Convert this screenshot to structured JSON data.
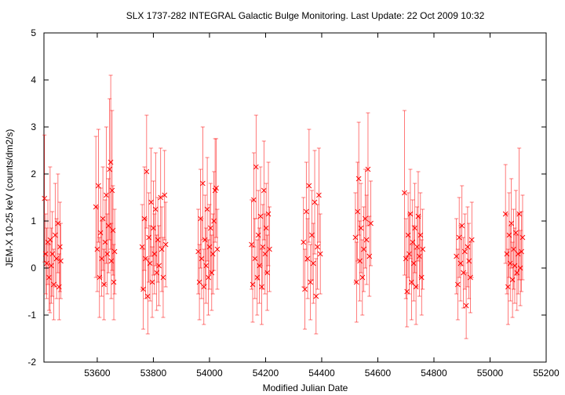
{
  "chart_data": {
    "type": "scatter",
    "title": "SLX 1737-282   INTEGRAL Galactic Bulge Monitoring.  Last Update: 22 Oct 2009 10:32",
    "xlabel": "Modified Julian Date",
    "ylabel": "JEM-X 10-25 keV (counts/dm2/s)",
    "xlim": [
      53410,
      55200
    ],
    "ylim": [
      -2,
      5
    ],
    "x_ticks": [
      53600,
      53800,
      54000,
      54200,
      54400,
      54600,
      54800,
      55000,
      55200
    ],
    "x_tick_labels": [
      "53600",
      "53800",
      "54000",
      "54200",
      "54400",
      "54600",
      "54800",
      "55000",
      "55200"
    ],
    "y_ticks": [
      -2,
      -1,
      0,
      1,
      2,
      3,
      4,
      5
    ],
    "y_tick_labels": [
      "-2",
      "-1",
      "0",
      "1",
      "2",
      "3",
      "4",
      "5"
    ],
    "grid": false,
    "marker": "x",
    "error_bars": true,
    "color": "#ff0000",
    "series": [
      {
        "points": [
          [
            53412,
            1.48,
            1.35
          ],
          [
            53416,
            0.3,
            0.85
          ],
          [
            53420,
            0.1,
            0.75
          ],
          [
            53424,
            0.55,
            0.9
          ],
          [
            53428,
            -0.2,
            0.7
          ],
          [
            53432,
            0.6,
            1.55
          ],
          [
            53436,
            0.05,
            0.8
          ],
          [
            53440,
            0.3,
            0.9
          ],
          [
            53445,
            -0.35,
            0.75
          ],
          [
            53450,
            0.7,
            1.1
          ],
          [
            53455,
            0.2,
            0.85
          ],
          [
            53460,
            0.95,
            1.05
          ],
          [
            53464,
            -0.4,
            0.7
          ],
          [
            53467,
            0.45,
            0.95
          ],
          [
            53470,
            0.15,
            0.8
          ],
          [
            53595,
            1.3,
            1.5
          ],
          [
            53600,
            0.4,
            0.9
          ],
          [
            53604,
            1.75,
            1.2
          ],
          [
            53608,
            -0.2,
            0.85
          ],
          [
            53612,
            0.75,
            0.95
          ],
          [
            53616,
            0.2,
            0.8
          ],
          [
            53620,
            1.05,
            1.1
          ],
          [
            53624,
            -0.35,
            0.75
          ],
          [
            53628,
            0.55,
            0.9
          ],
          [
            53632,
            1.55,
            1.45
          ],
          [
            53636,
            0.3,
            0.85
          ],
          [
            53640,
            0.9,
            1.0
          ],
          [
            53644,
            2.1,
            1.5
          ],
          [
            53648,
            2.25,
            1.85
          ],
          [
            53650,
            0.15,
            0.8
          ],
          [
            53653,
            1.65,
            1.7
          ],
          [
            53656,
            0.8,
            0.95
          ],
          [
            53659,
            -0.3,
            0.8
          ],
          [
            53662,
            0.35,
            0.9
          ],
          [
            53760,
            0.45,
            0.9
          ],
          [
            53764,
            -0.45,
            0.85
          ],
          [
            53768,
            1.05,
            1.1
          ],
          [
            53772,
            0.2,
            0.85
          ],
          [
            53776,
            2.05,
            1.2
          ],
          [
            53780,
            -0.6,
            0.8
          ],
          [
            53784,
            0.65,
            0.95
          ],
          [
            53788,
            0.1,
            0.8
          ],
          [
            53792,
            1.4,
            1.15
          ],
          [
            53796,
            -0.3,
            0.75
          ],
          [
            53800,
            0.85,
            1.0
          ],
          [
            53804,
            0.3,
            0.85
          ],
          [
            53808,
            1.25,
            1.2
          ],
          [
            53812,
            -0.1,
            0.8
          ],
          [
            53816,
            0.6,
            0.9
          ],
          [
            53820,
            0.05,
            0.85
          ],
          [
            53826,
            1.5,
            1.05
          ],
          [
            53830,
            0.4,
            0.9
          ],
          [
            53835,
            -0.2,
            0.85
          ],
          [
            53840,
            1.55,
            0.95
          ],
          [
            53844,
            0.5,
            0.9
          ],
          [
            53960,
            0.35,
            0.9
          ],
          [
            53964,
            -0.3,
            0.8
          ],
          [
            53968,
            1.05,
            1.05
          ],
          [
            53972,
            0.2,
            0.85
          ],
          [
            53976,
            1.8,
            1.2
          ],
          [
            53980,
            -0.4,
            0.8
          ],
          [
            53984,
            0.6,
            0.95
          ],
          [
            53988,
            0.05,
            0.8
          ],
          [
            53992,
            1.25,
            1.1
          ],
          [
            53996,
            -0.2,
            0.8
          ],
          [
            54000,
            0.45,
            0.9
          ],
          [
            54004,
            0.85,
            0.95
          ],
          [
            54008,
            -0.1,
            0.8
          ],
          [
            54012,
            0.3,
            0.85
          ],
          [
            54016,
            1.0,
            1.05
          ],
          [
            54020,
            1.65,
            1.1
          ],
          [
            54024,
            1.7,
            1.05
          ],
          [
            54028,
            0.4,
            0.85
          ],
          [
            54150,
            0.5,
            0.95
          ],
          [
            54154,
            -0.35,
            0.8
          ],
          [
            54158,
            1.45,
            1.0
          ],
          [
            54162,
            0.2,
            0.85
          ],
          [
            54166,
            2.15,
            1.1
          ],
          [
            54170,
            -0.2,
            0.8
          ],
          [
            54174,
            0.7,
            0.95
          ],
          [
            54178,
            0.05,
            0.8
          ],
          [
            54182,
            1.1,
            1.05
          ],
          [
            54186,
            -0.4,
            0.8
          ],
          [
            54190,
            0.45,
            0.9
          ],
          [
            54194,
            1.65,
            1.05
          ],
          [
            54198,
            0.3,
            0.85
          ],
          [
            54202,
            0.85,
            0.95
          ],
          [
            54206,
            -0.1,
            0.8
          ],
          [
            54210,
            1.15,
            1.1
          ],
          [
            54214,
            0.4,
            0.9
          ],
          [
            54335,
            0.55,
            0.95
          ],
          [
            54340,
            -0.45,
            0.85
          ],
          [
            54345,
            1.2,
            1.05
          ],
          [
            54350,
            0.2,
            0.85
          ],
          [
            54355,
            1.75,
            1.2
          ],
          [
            54360,
            -0.3,
            0.8
          ],
          [
            54365,
            0.7,
            0.95
          ],
          [
            54370,
            0.1,
            0.85
          ],
          [
            54375,
            1.4,
            1.1
          ],
          [
            54380,
            -0.6,
            0.8
          ],
          [
            54385,
            0.45,
            0.9
          ],
          [
            54390,
            1.55,
            1.0
          ],
          [
            54395,
            0.3,
            0.85
          ],
          [
            54520,
            0.65,
            0.95
          ],
          [
            54524,
            -0.3,
            0.85
          ],
          [
            54528,
            1.2,
            1.05
          ],
          [
            54532,
            1.9,
            1.2
          ],
          [
            54536,
            0.15,
            0.85
          ],
          [
            54540,
            0.85,
            0.95
          ],
          [
            54545,
            -0.2,
            0.8
          ],
          [
            54550,
            0.4,
            0.9
          ],
          [
            54555,
            1.05,
            1.05
          ],
          [
            54560,
            0.6,
            0.95
          ],
          [
            54565,
            2.1,
            1.2
          ],
          [
            54570,
            0.25,
            0.85
          ],
          [
            54575,
            0.95,
            0.9
          ],
          [
            54695,
            1.6,
            1.75
          ],
          [
            54700,
            0.2,
            0.85
          ],
          [
            54704,
            -0.5,
            0.75
          ],
          [
            54708,
            0.7,
            0.9
          ],
          [
            54712,
            0.3,
            0.85
          ],
          [
            54716,
            1.15,
            0.95
          ],
          [
            54720,
            -0.3,
            0.8
          ],
          [
            54724,
            0.55,
            0.9
          ],
          [
            54728,
            0.1,
            0.8
          ],
          [
            54732,
            0.85,
            0.95
          ],
          [
            54736,
            -0.4,
            0.8
          ],
          [
            54740,
            0.45,
            0.85
          ],
          [
            54744,
            1.1,
            0.95
          ],
          [
            54748,
            0.25,
            0.85
          ],
          [
            54752,
            0.7,
            0.9
          ],
          [
            54756,
            -0.2,
            0.8
          ],
          [
            54760,
            0.4,
            0.85
          ],
          [
            54880,
            0.25,
            0.8
          ],
          [
            54885,
            -0.35,
            0.75
          ],
          [
            54890,
            0.65,
            0.85
          ],
          [
            54895,
            0.1,
            0.8
          ],
          [
            54900,
            0.9,
            0.85
          ],
          [
            54905,
            -0.1,
            0.75
          ],
          [
            54910,
            0.35,
            0.8
          ],
          [
            54915,
            -0.8,
            0.7
          ],
          [
            54920,
            0.45,
            0.85
          ],
          [
            54925,
            0.15,
            0.8
          ],
          [
            54930,
            -0.2,
            0.75
          ],
          [
            54935,
            0.6,
            0.8
          ],
          [
            55055,
            1.15,
            1.05
          ],
          [
            55060,
            0.3,
            0.85
          ],
          [
            55064,
            -0.4,
            0.8
          ],
          [
            55068,
            0.7,
            0.9
          ],
          [
            55072,
            0.1,
            0.8
          ],
          [
            55076,
            0.95,
            0.95
          ],
          [
            55080,
            -0.25,
            0.8
          ],
          [
            55084,
            0.4,
            0.85
          ],
          [
            55088,
            0.05,
            0.8
          ],
          [
            55092,
            0.75,
            0.9
          ],
          [
            55096,
            -0.1,
            0.8
          ],
          [
            55100,
            0.3,
            0.85
          ],
          [
            55104,
            1.15,
            1.4
          ],
          [
            55108,
            0.0,
            0.8
          ],
          [
            55112,
            0.35,
            0.85
          ],
          [
            55116,
            0.65,
            0.9
          ]
        ]
      }
    ]
  }
}
